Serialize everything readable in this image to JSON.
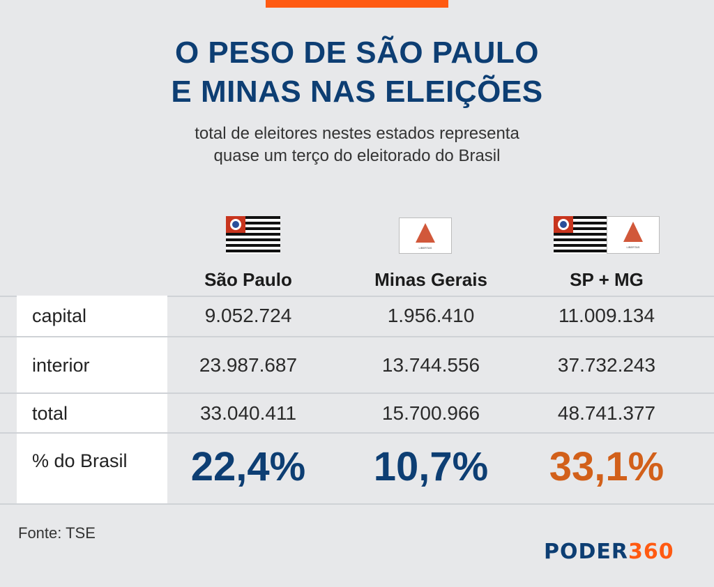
{
  "header": {
    "title_line1": "O PESO DE SÃO PAULO",
    "title_line2": "E MINAS NAS ELEIÇÕES",
    "subtitle_line1": "total de eleitores nestes estados representa",
    "subtitle_line2": "quase um terço do eleitorado do Brasil"
  },
  "columns": [
    "São Paulo",
    "Minas Gerais",
    "SP + MG"
  ],
  "rows": [
    {
      "label": "capital",
      "values": [
        "9.052.724",
        "1.956.410",
        "11.009.134"
      ]
    },
    {
      "label": "interior",
      "values": [
        "23.987.687",
        "13.744.556",
        "37.732.243"
      ]
    },
    {
      "label": "total",
      "values": [
        "33.040.411",
        "15.700.966",
        "48.741.377"
      ]
    }
  ],
  "percent_row": {
    "label": "% do Brasil",
    "values": [
      "22,4%",
      "10,7%",
      "33,1%"
    ]
  },
  "flags": [
    "sao-paulo-flag",
    "minas-gerais-flag",
    "sao-paulo-flag",
    "minas-gerais-flag"
  ],
  "colors": {
    "title": "#0d3e73",
    "accent": "#d2601a",
    "bar": "#ff5a12"
  },
  "footer": {
    "source": "Fonte: TSE",
    "logo_main": "PODER",
    "logo_num": "360"
  }
}
